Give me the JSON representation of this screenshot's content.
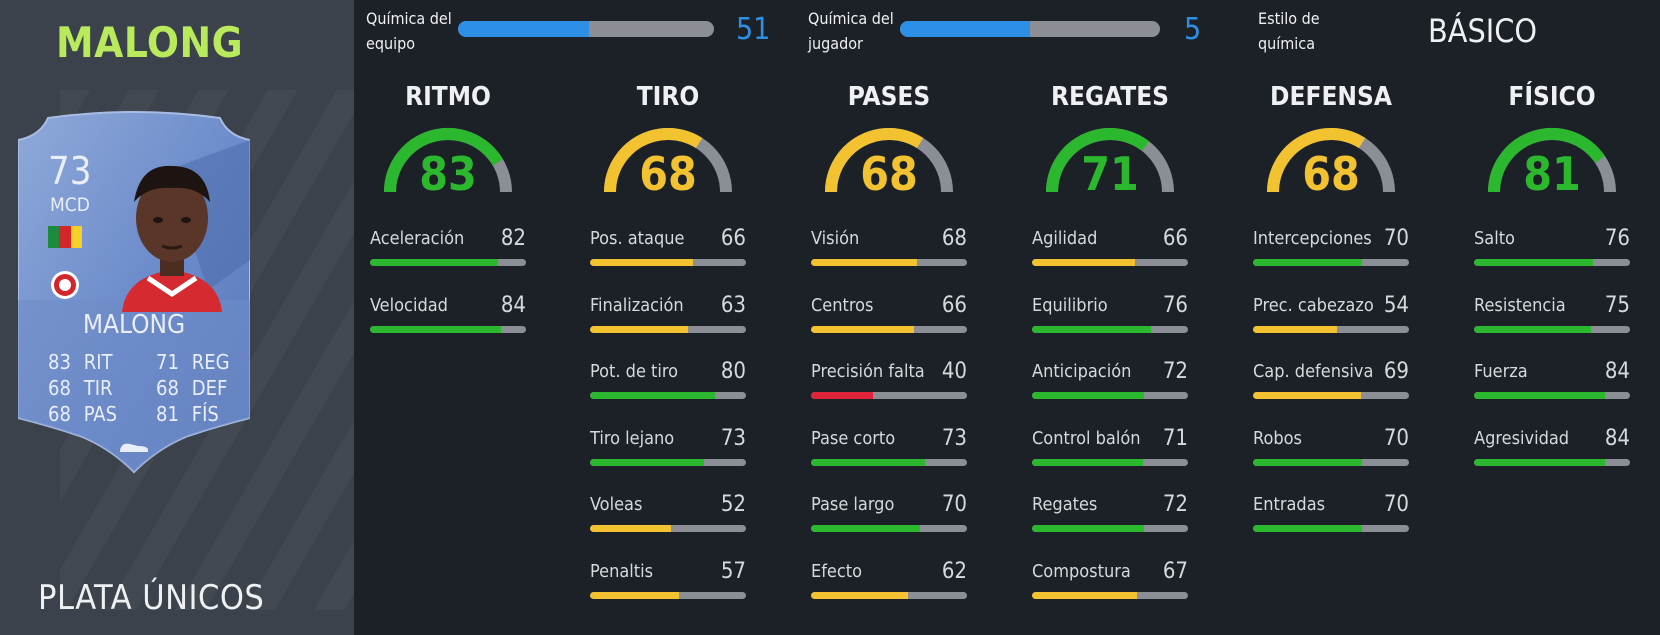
{
  "player": {
    "name_title": "MALONG",
    "card_type": "PLATA ÚNICOS",
    "card": {
      "rating": "73",
      "position": "MCD",
      "name": "MALONG",
      "stats": [
        {
          "value": "83",
          "abbr": "RIT"
        },
        {
          "value": "68",
          "abbr": "TIR"
        },
        {
          "value": "68",
          "abbr": "PAS"
        },
        {
          "value": "71",
          "abbr": "REG"
        },
        {
          "value": "68",
          "abbr": "DEF"
        },
        {
          "value": "81",
          "abbr": "FÍS"
        }
      ]
    }
  },
  "chemistry": {
    "team": {
      "label_line1": "Química del",
      "label_line2": "equipo",
      "value": "51",
      "fill": 0.51
    },
    "player": {
      "label_line1": "Química del",
      "label_line2": "jugador",
      "value": "5",
      "fill": 0.5
    },
    "style": {
      "label_line1": "Estilo de",
      "label_line2": "química",
      "value": "BÁSICO"
    }
  },
  "colors": {
    "green": "#2bb82f",
    "yellow": "#f2c230",
    "red": "#e0253a",
    "blue": "#2d8fe6",
    "gray": "#8b8f95",
    "title_green": "#b9ea5c"
  },
  "categories": [
    {
      "title": "RITMO",
      "value": "83",
      "attrs": [
        {
          "name": "Aceleración",
          "value": "82"
        },
        {
          "name": "Velocidad",
          "value": "84"
        }
      ]
    },
    {
      "title": "TIRO",
      "value": "68",
      "attrs": [
        {
          "name": "Pos. ataque",
          "value": "66"
        },
        {
          "name": "Finalización",
          "value": "63"
        },
        {
          "name": "Pot. de tiro",
          "value": "80"
        },
        {
          "name": "Tiro lejano",
          "value": "73"
        },
        {
          "name": "Voleas",
          "value": "52"
        },
        {
          "name": "Penaltis",
          "value": "57"
        }
      ]
    },
    {
      "title": "PASES",
      "value": "68",
      "attrs": [
        {
          "name": "Visión",
          "value": "68"
        },
        {
          "name": "Centros",
          "value": "66"
        },
        {
          "name": "Precisión falta",
          "value": "40"
        },
        {
          "name": "Pase corto",
          "value": "73"
        },
        {
          "name": "Pase largo",
          "value": "70"
        },
        {
          "name": "Efecto",
          "value": "62"
        }
      ]
    },
    {
      "title": "REGATES",
      "value": "71",
      "attrs": [
        {
          "name": "Agilidad",
          "value": "66"
        },
        {
          "name": "Equilibrio",
          "value": "76"
        },
        {
          "name": "Anticipación",
          "value": "72"
        },
        {
          "name": "Control balón",
          "value": "71"
        },
        {
          "name": "Regates",
          "value": "72"
        },
        {
          "name": "Compostura",
          "value": "67"
        }
      ]
    },
    {
      "title": "DEFENSA",
      "value": "68",
      "attrs": [
        {
          "name": "Intercepciones",
          "value": "70"
        },
        {
          "name": "Prec. cabezazo",
          "value": "54"
        },
        {
          "name": "Cap. defensiva",
          "value": "69"
        },
        {
          "name": "Robos",
          "value": "70"
        },
        {
          "name": "Entradas",
          "value": "70"
        }
      ]
    },
    {
      "title": "FÍSICO",
      "value": "81",
      "attrs": [
        {
          "name": "Salto",
          "value": "76"
        },
        {
          "name": "Resistencia",
          "value": "75"
        },
        {
          "name": "Fuerza",
          "value": "84"
        },
        {
          "name": "Agresividad",
          "value": "84"
        }
      ]
    }
  ]
}
